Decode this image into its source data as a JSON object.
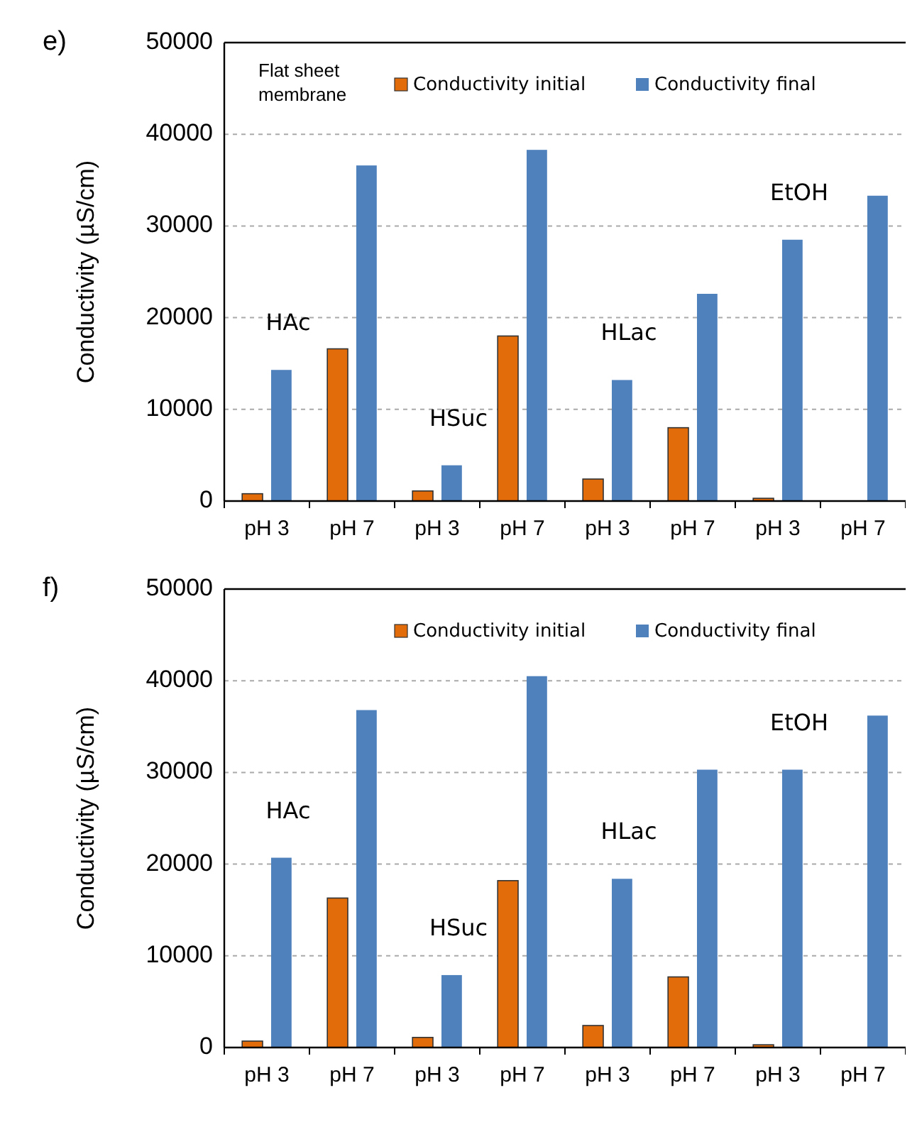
{
  "chart_data": [
    {
      "type": "bar",
      "title": "e)",
      "ylabel": "Conductivity (µS/cm)",
      "categories": [
        "pH 3",
        "pH 7",
        "pH 3",
        "pH 7",
        "pH 3",
        "pH 7",
        "pH 3",
        "pH 7"
      ],
      "series": [
        {
          "name": "Conductivity initial",
          "color": "#e36c0a",
          "values": [
            800,
            16600,
            1100,
            18000,
            2400,
            8000,
            300,
            0
          ]
        },
        {
          "name": "Conductivity final",
          "color": "#4f81bd",
          "values": [
            14300,
            36600,
            3900,
            38300,
            13200,
            22600,
            28500,
            33300
          ]
        }
      ],
      "annotations": [
        "HAc",
        "HSuc",
        "HLac",
        "EtOH",
        "Flat sheet membrane"
      ],
      "ylim": [
        0,
        50000
      ],
      "yticks": [
        0,
        10000,
        20000,
        30000,
        40000,
        50000
      ],
      "grid": "y",
      "legend": "top right"
    },
    {
      "type": "bar",
      "title": "f)",
      "ylabel": "Conductivity (µS/cm)",
      "categories": [
        "pH 3",
        "pH 7",
        "pH 3",
        "pH 7",
        "pH 3",
        "pH 7",
        "pH 3",
        "pH 7"
      ],
      "series": [
        {
          "name": "Conductivity initial",
          "color": "#e36c0a",
          "values": [
            700,
            16300,
            1100,
            18200,
            2400,
            7700,
            300,
            0
          ]
        },
        {
          "name": "Conductivity final",
          "color": "#4f81bd",
          "values": [
            20700,
            36800,
            7900,
            40500,
            18400,
            30300,
            30300,
            36200
          ]
        }
      ],
      "annotations": [
        "HAc",
        "HSuc",
        "HLac",
        "EtOH"
      ],
      "ylim": [
        0,
        50000
      ],
      "yticks": [
        0,
        10000,
        20000,
        30000,
        40000,
        50000
      ],
      "grid": "y",
      "legend": "top right"
    }
  ]
}
